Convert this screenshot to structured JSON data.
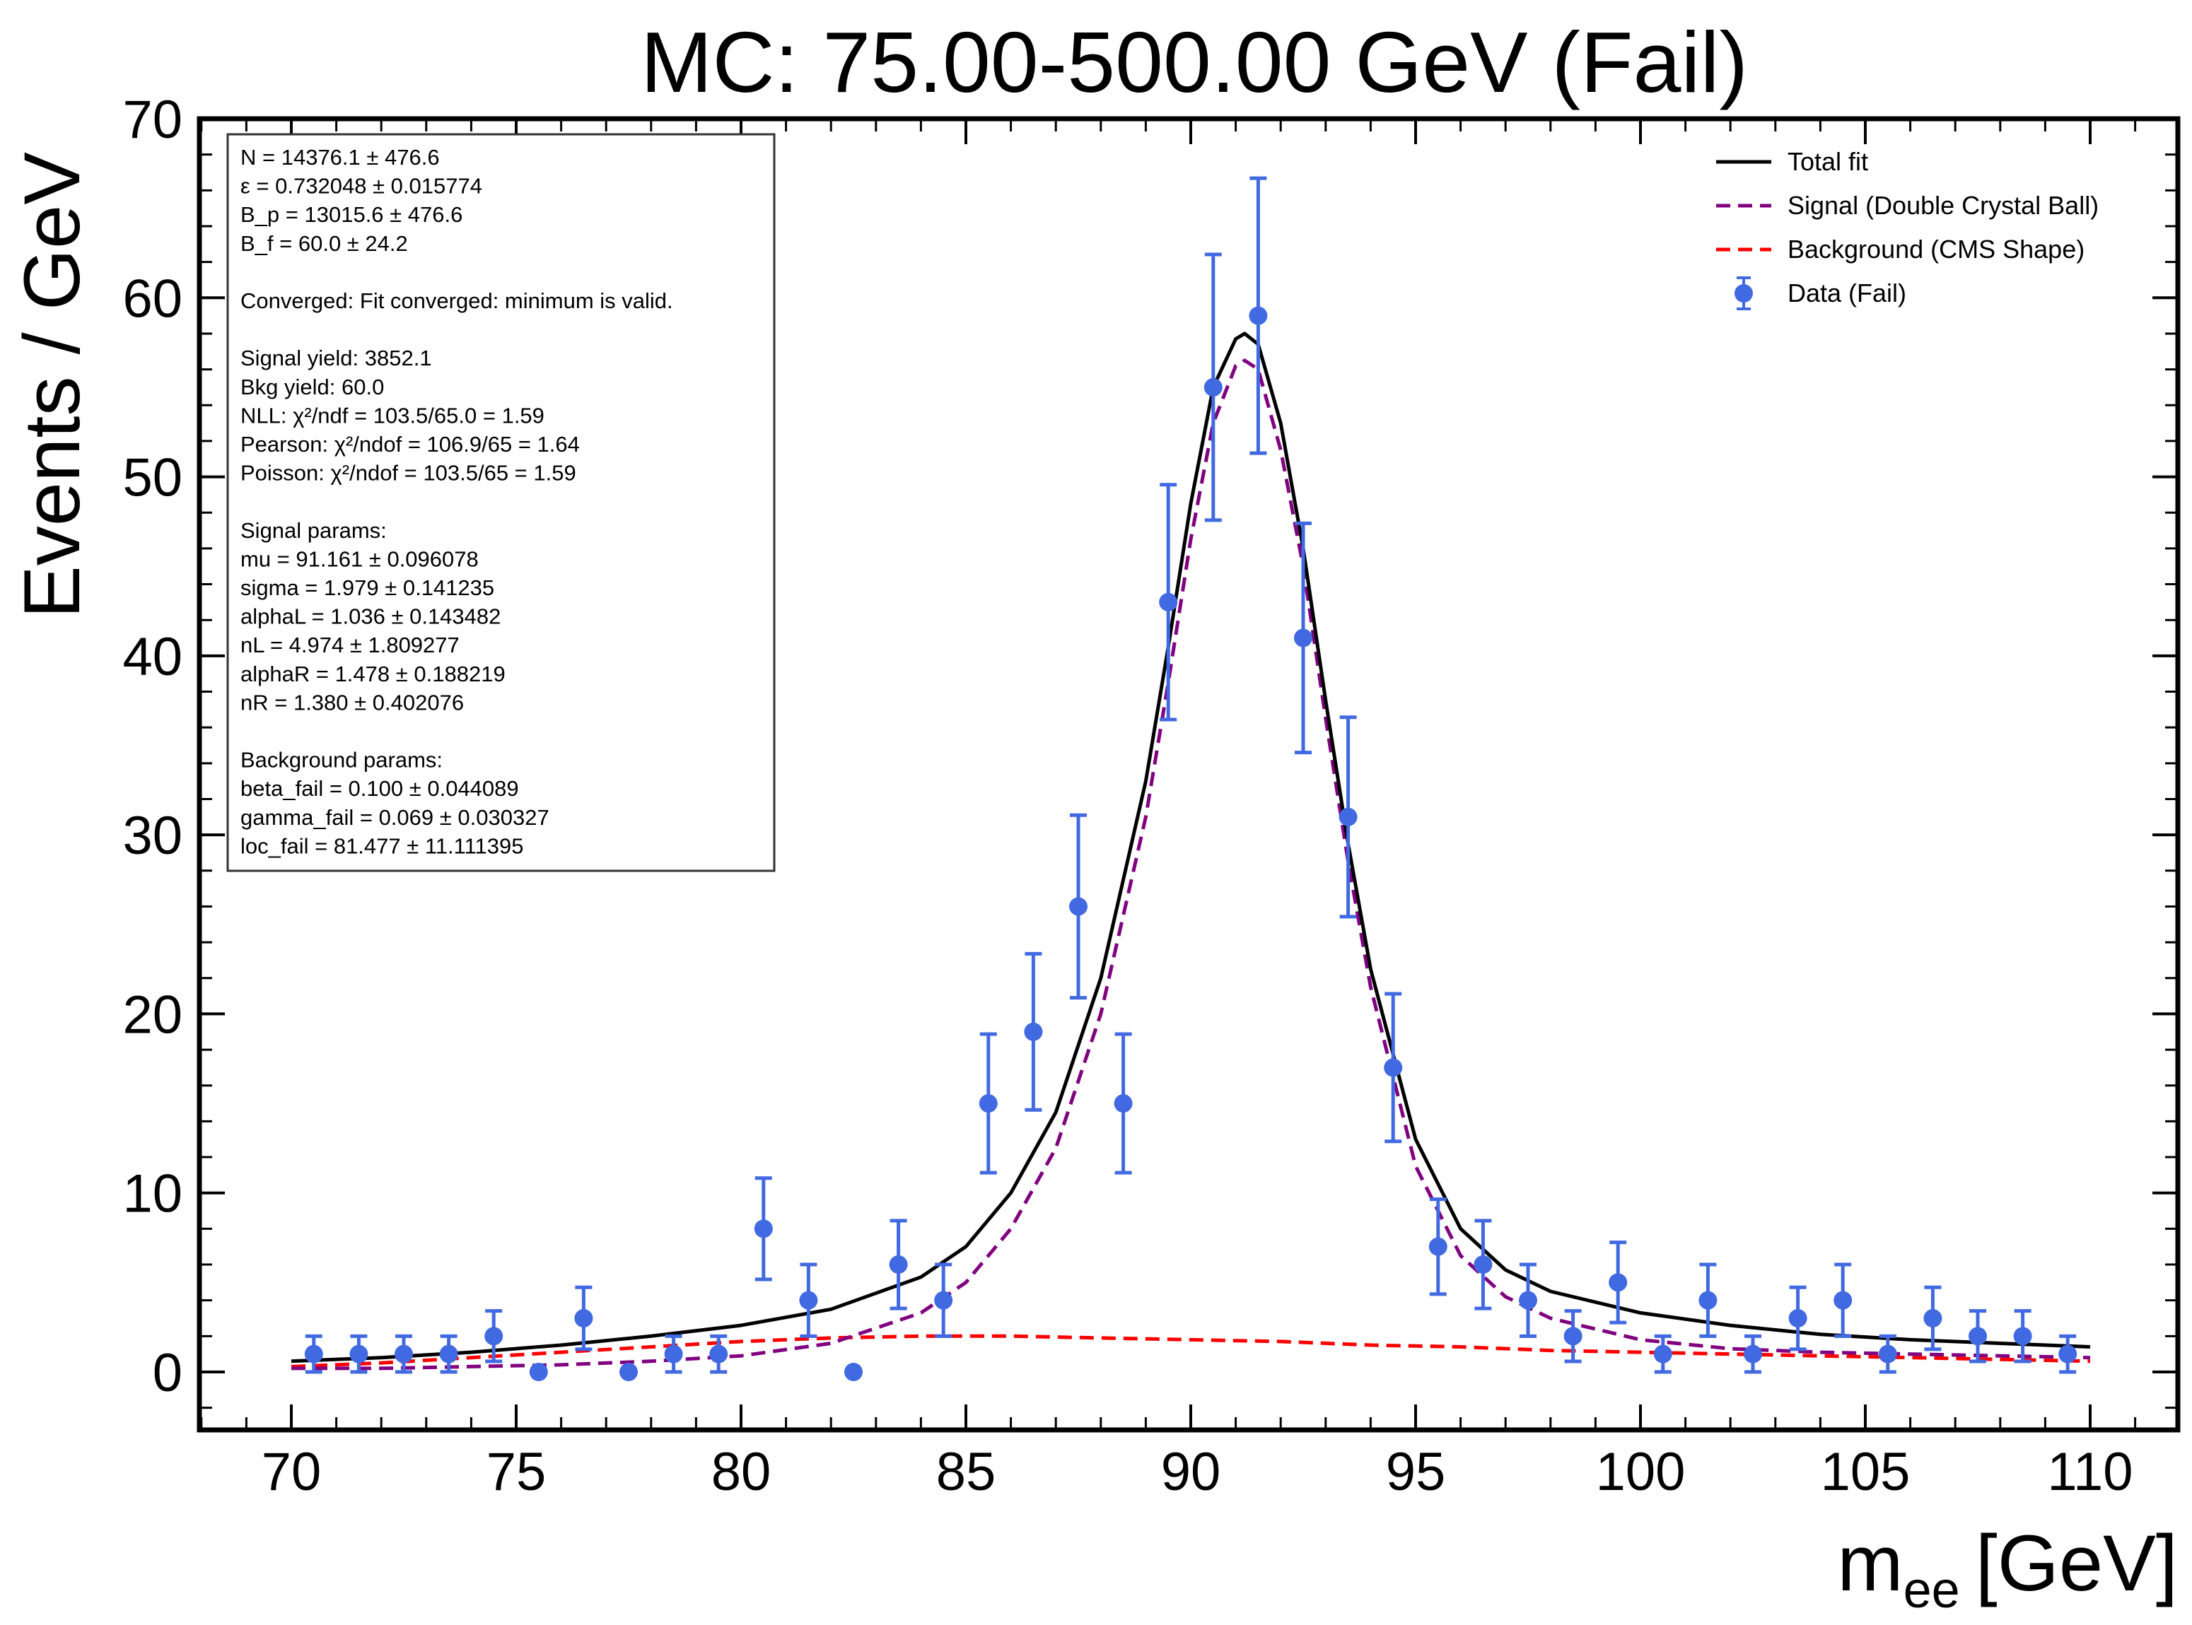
{
  "chart_data": {
    "type": "scatter",
    "title": "MC: 75.00-500.00 GeV (Fail)",
    "xlabel_main": "m",
    "xlabel_sub": "ee",
    "xlabel_unit": "[GeV]",
    "ylabel": "Events / GeV",
    "xlim": [
      68,
      112
    ],
    "ylim": [
      -3.3,
      70
    ],
    "x_ticks": [
      70,
      75,
      80,
      85,
      90,
      95,
      100,
      105,
      110
    ],
    "x_tick_labels": [
      "70",
      "75",
      "80",
      "85",
      "90",
      "95",
      "100",
      "105",
      "110"
    ],
    "y_ticks": [
      0,
      10,
      20,
      30,
      40,
      50,
      60,
      70
    ],
    "y_tick_labels": [
      "0",
      "10",
      "20",
      "30",
      "40",
      "50",
      "60",
      "70"
    ],
    "grid": false,
    "legend_position": "top-right",
    "info_box_position": "top-left",
    "info_lines": [
      "N = 14376.1 ± 476.6",
      "ε = 0.732048 ± 0.015774",
      "B_p = 13015.6 ± 476.6",
      "B_f = 60.0 ± 24.2",
      "",
      "Converged: Fit converged: minimum is valid.",
      "",
      "Signal yield: 3852.1",
      "Bkg yield: 60.0",
      "NLL: χ²/ndf = 103.5/65.0 = 1.59",
      "Pearson: χ²/ndof = 106.9/65 = 1.64",
      "Poisson: χ²/ndof = 103.5/65 = 1.59",
      "",
      "Signal params:",
      "mu = 91.161 ± 0.096078",
      "sigma = 1.979 ± 0.141235",
      "alphaL = 1.036 ± 0.143482",
      "nL = 4.974 ± 1.809277",
      "alphaR = 1.478 ± 0.188219",
      "nR = 1.380 ± 0.402076",
      "",
      "Background params:",
      "beta_fail = 0.100 ± 0.044089",
      "gamma_fail = 0.069 ± 0.030327",
      "loc_fail = 81.477 ± 11.111395"
    ],
    "legend": [
      {
        "label": "Total fit",
        "style": "solid",
        "color": "#000000"
      },
      {
        "label": "Signal (Double Crystal Ball)",
        "style": "dashed",
        "color": "#800080"
      },
      {
        "label": "Background (CMS Shape)",
        "style": "dashed",
        "color": "#ff0000"
      },
      {
        "label": "Data (Fail)",
        "style": "marker",
        "color": "#4169e1"
      }
    ],
    "series": [
      {
        "name": "Data (Fail)",
        "color": "#4169e1",
        "x": [
          70.5,
          71.5,
          72.5,
          73.5,
          74.5,
          75.5,
          76.5,
          77.5,
          78.5,
          79.5,
          80.5,
          81.5,
          82.5,
          83.5,
          84.5,
          85.5,
          86.5,
          87.5,
          88.5,
          89.5,
          90.5,
          91.5,
          92.5,
          93.5,
          94.5,
          95.5,
          96.5,
          97.5,
          98.5,
          99.5,
          100.5,
          101.5,
          102.5,
          103.5,
          104.5,
          105.5,
          106.5,
          107.5,
          108.5,
          109.5
        ],
        "y": [
          1,
          1,
          1,
          1,
          2,
          0,
          3,
          0,
          1,
          1,
          8,
          4,
          0,
          6,
          4,
          15,
          19,
          26,
          15,
          43,
          55,
          59,
          41,
          31,
          17,
          7,
          6,
          4,
          2,
          5,
          1,
          4,
          1,
          3,
          4,
          1,
          3,
          2,
          2,
          1
        ],
        "yerr": [
          1.0,
          1.0,
          1.0,
          1.0,
          1.41,
          0,
          1.73,
          0,
          1.0,
          1.0,
          2.83,
          2.0,
          0,
          2.45,
          2.0,
          3.87,
          4.36,
          5.1,
          3.87,
          6.56,
          7.42,
          7.68,
          6.4,
          5.57,
          4.12,
          2.65,
          2.45,
          2.0,
          1.41,
          2.24,
          1.0,
          2.0,
          1.0,
          1.73,
          2.0,
          1.0,
          1.73,
          1.41,
          1.41,
          1.0
        ]
      },
      {
        "name": "Total fit",
        "color": "#000000",
        "x": [
          70,
          72,
          74,
          76,
          78,
          80,
          82,
          84,
          85,
          86,
          87,
          88,
          89,
          89.5,
          90,
          90.5,
          91,
          91.2,
          91.5,
          92,
          92.5,
          93,
          93.5,
          94,
          95,
          96,
          97,
          98,
          100,
          102,
          104,
          106,
          108,
          110
        ],
        "y": [
          0.6,
          0.8,
          1.1,
          1.5,
          2.0,
          2.6,
          3.5,
          5.3,
          7.0,
          10.0,
          14.5,
          22.0,
          33.0,
          40.5,
          48.5,
          55.0,
          57.7,
          58.0,
          57.4,
          53.0,
          46.0,
          37.5,
          29.5,
          22.5,
          13.0,
          8.0,
          5.7,
          4.5,
          3.3,
          2.6,
          2.1,
          1.8,
          1.6,
          1.4
        ]
      },
      {
        "name": "Signal (Double Crystal Ball)",
        "color": "#800080",
        "x": [
          70,
          72,
          74,
          76,
          78,
          80,
          82,
          84,
          85,
          86,
          87,
          88,
          89,
          89.5,
          90,
          90.5,
          91,
          91.2,
          91.5,
          92,
          92.5,
          93,
          93.5,
          94,
          95,
          96,
          97,
          98,
          100,
          102,
          104,
          106,
          108,
          110
        ],
        "y": [
          0.2,
          0.2,
          0.3,
          0.4,
          0.6,
          0.9,
          1.6,
          3.3,
          5.0,
          8.0,
          12.5,
          20.0,
          31.0,
          38.5,
          46.5,
          53.0,
          56.2,
          56.5,
          56.0,
          51.5,
          45.0,
          36.5,
          28.5,
          21.5,
          11.5,
          6.5,
          4.2,
          3.0,
          1.8,
          1.3,
          1.1,
          1.0,
          0.9,
          0.8
        ]
      },
      {
        "name": "Background (CMS Shape)",
        "color": "#ff0000",
        "x": [
          70,
          72,
          74,
          76,
          78,
          80,
          82,
          84,
          86,
          88,
          90,
          92,
          94,
          96,
          98,
          100,
          102,
          104,
          106,
          108,
          110
        ],
        "y": [
          0.3,
          0.5,
          0.8,
          1.1,
          1.4,
          1.7,
          1.9,
          2.0,
          2.0,
          1.9,
          1.8,
          1.7,
          1.5,
          1.4,
          1.2,
          1.1,
          1.0,
          0.9,
          0.8,
          0.7,
          0.6
        ]
      }
    ]
  }
}
